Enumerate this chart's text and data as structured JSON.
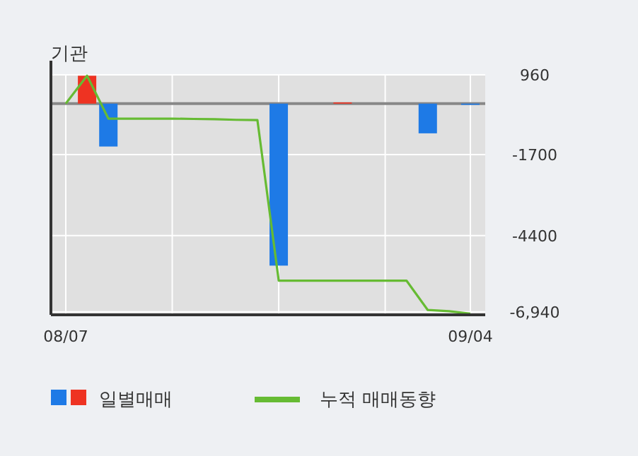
{
  "chart_data": {
    "type": "bar",
    "title": "기관",
    "categories": [
      "08/07",
      null,
      null,
      null,
      null,
      null,
      null,
      null,
      null,
      null,
      null,
      null,
      null,
      null,
      null,
      null,
      null,
      null,
      null,
      "09/04"
    ],
    "series": [
      {
        "name": "일별매매",
        "colors": [
          "#1e7ae6",
          "#ee3322",
          "#1e7ae6",
          "#1e7ae6",
          "#1e7ae6",
          "#1e7ae6",
          "#1e7ae6",
          "#1e7ae6",
          "#1e7ae6",
          "#1e7ae6",
          "#1e7ae6",
          "#1e7ae6",
          "#1e7ae6",
          "#ee3322",
          "#1e7ae6",
          "#1e7ae6",
          "#1e7ae6",
          "#1e7ae6",
          "#1e7ae6",
          "#1e7ae6"
        ],
        "values": [
          null,
          930,
          -1430,
          null,
          null,
          null,
          null,
          null,
          null,
          null,
          -5400,
          null,
          null,
          40,
          null,
          null,
          null,
          -990,
          null,
          -40
        ]
      },
      {
        "name": "누적 매매동향",
        "type": "line",
        "color": "#66bb33",
        "values": [
          0,
          930,
          -500,
          -500,
          -500,
          -500,
          -510,
          -520,
          -540,
          -550,
          -5900,
          -5900,
          -5900,
          -5900,
          -5900,
          -5900,
          -5900,
          -6880,
          -6920,
          -7000
        ]
      }
    ],
    "ylim": [
      -7040,
      960
    ],
    "yticks": [
      960,
      -1700,
      -4400,
      {
        "value": -6940,
        "label": "-6,940"
      }
    ],
    "ref_lines": [
      {
        "axis": "y",
        "value": 0,
        "color": "#888888"
      }
    ],
    "grid": true,
    "legend": "bottom"
  }
}
